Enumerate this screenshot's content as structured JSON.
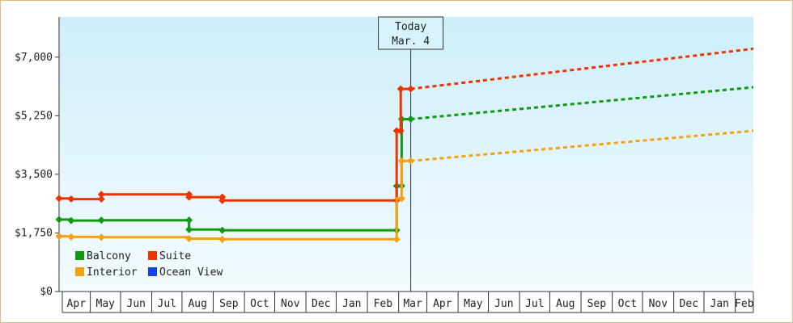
{
  "chart_data": {
    "type": "line",
    "title": "",
    "xlabel": "",
    "ylabel": "",
    "x_domain": [
      "2021-03-20",
      "2023-02-07"
    ],
    "ylim": [
      0,
      8200
    ],
    "y_ticks": [
      0,
      1750,
      3500,
      5250,
      7000
    ],
    "y_tick_labels": [
      "$0",
      "$1,750",
      "$3,500",
      "$5,250",
      "$7,000"
    ],
    "month_ticks": [
      {
        "date": "2021-03-20",
        "label": "Apr"
      },
      {
        "date": "2021-04-20",
        "label": "May"
      },
      {
        "date": "2021-05-20",
        "label": "Jun"
      },
      {
        "date": "2021-06-20",
        "label": "Jul"
      },
      {
        "date": "2021-07-20",
        "label": "Aug"
      },
      {
        "date": "2021-08-20",
        "label": "Sep"
      },
      {
        "date": "2021-09-20",
        "label": "Oct"
      },
      {
        "date": "2021-10-20",
        "label": "Nov"
      },
      {
        "date": "2021-11-20",
        "label": "Dec"
      },
      {
        "date": "2021-12-20",
        "label": "Jan"
      },
      {
        "date": "2022-01-20",
        "label": "Feb"
      },
      {
        "date": "2022-02-20",
        "label": "Mar"
      },
      {
        "date": "2022-03-20",
        "label": "Apr"
      },
      {
        "date": "2022-04-20",
        "label": "May"
      },
      {
        "date": "2022-05-20",
        "label": "Jun"
      },
      {
        "date": "2022-06-20",
        "label": "Jul"
      },
      {
        "date": "2022-07-20",
        "label": "Aug"
      },
      {
        "date": "2022-08-20",
        "label": "Sep"
      },
      {
        "date": "2022-09-20",
        "label": "Oct"
      },
      {
        "date": "2022-10-20",
        "label": "Nov"
      },
      {
        "date": "2022-11-20",
        "label": "Dec"
      },
      {
        "date": "2022-12-20",
        "label": "Jan"
      },
      {
        "date": "2023-01-20",
        "label": "Feb"
      }
    ],
    "today": {
      "date": "2022-03-04",
      "line1": "Today",
      "line2": "Mar. 4"
    },
    "series": [
      {
        "name": "Balcony",
        "color": "#119911",
        "points": [
          [
            "2021-03-20",
            2150
          ],
          [
            "2021-04-01",
            2150
          ],
          [
            "2021-04-01",
            2120
          ],
          [
            "2021-05-01",
            2120
          ],
          [
            "2021-05-01",
            2130
          ],
          [
            "2021-07-27",
            2130
          ],
          [
            "2021-07-27",
            1850
          ],
          [
            "2021-08-29",
            1850
          ],
          [
            "2021-08-29",
            1830
          ],
          [
            "2022-02-18",
            1830
          ],
          [
            "2022-02-18",
            3150
          ],
          [
            "2022-02-23",
            3150
          ],
          [
            "2022-02-23",
            5150
          ],
          [
            "2022-03-04",
            5150
          ]
        ],
        "markers": [
          [
            "2021-03-20",
            2150
          ],
          [
            "2021-04-01",
            2120
          ],
          [
            "2021-05-01",
            2130
          ],
          [
            "2021-07-27",
            2130
          ],
          [
            "2021-07-27",
            1850
          ],
          [
            "2021-08-29",
            1830
          ],
          [
            "2022-02-18",
            1830
          ],
          [
            "2022-02-18",
            3150
          ],
          [
            "2022-02-23",
            3150
          ],
          [
            "2022-02-23",
            5150
          ],
          [
            "2022-03-04",
            5150
          ]
        ],
        "forecast": [
          [
            "2022-03-04",
            5150
          ],
          [
            "2023-02-07",
            6100
          ]
        ]
      },
      {
        "name": "Suite",
        "color": "#ee3300",
        "points": [
          [
            "2021-03-20",
            2780
          ],
          [
            "2021-04-01",
            2780
          ],
          [
            "2021-04-01",
            2760
          ],
          [
            "2021-05-01",
            2760
          ],
          [
            "2021-05-01",
            2900
          ],
          [
            "2021-07-27",
            2900
          ],
          [
            "2021-07-27",
            2820
          ],
          [
            "2021-08-29",
            2820
          ],
          [
            "2021-08-29",
            2720
          ],
          [
            "2022-02-18",
            2720
          ],
          [
            "2022-02-18",
            4800
          ],
          [
            "2022-02-22",
            4800
          ],
          [
            "2022-02-22",
            6050
          ],
          [
            "2022-03-04",
            6050
          ]
        ],
        "markers": [
          [
            "2021-03-20",
            2780
          ],
          [
            "2021-04-01",
            2760
          ],
          [
            "2021-05-01",
            2760
          ],
          [
            "2021-05-01",
            2900
          ],
          [
            "2021-07-27",
            2900
          ],
          [
            "2021-07-27",
            2820
          ],
          [
            "2021-08-29",
            2820
          ],
          [
            "2021-08-29",
            2720
          ],
          [
            "2022-02-18",
            2720
          ],
          [
            "2022-02-18",
            4800
          ],
          [
            "2022-02-22",
            4800
          ],
          [
            "2022-02-22",
            6050
          ],
          [
            "2022-03-04",
            6050
          ]
        ],
        "forecast": [
          [
            "2022-03-04",
            6050
          ],
          [
            "2023-02-07",
            7250
          ]
        ]
      },
      {
        "name": "Interior",
        "color": "#f5a010",
        "points": [
          [
            "2021-03-20",
            1650
          ],
          [
            "2021-04-01",
            1650
          ],
          [
            "2021-04-01",
            1630
          ],
          [
            "2021-05-01",
            1630
          ],
          [
            "2021-05-01",
            1620
          ],
          [
            "2021-07-27",
            1620
          ],
          [
            "2021-07-27",
            1580
          ],
          [
            "2021-08-29",
            1580
          ],
          [
            "2021-08-29",
            1560
          ],
          [
            "2022-02-18",
            1560
          ],
          [
            "2022-02-18",
            2780
          ],
          [
            "2022-02-23",
            2780
          ],
          [
            "2022-02-23",
            3900
          ],
          [
            "2022-03-04",
            3900
          ]
        ],
        "markers": [
          [
            "2021-03-20",
            1650
          ],
          [
            "2021-04-01",
            1630
          ],
          [
            "2021-05-01",
            1620
          ],
          [
            "2021-07-27",
            1580
          ],
          [
            "2021-08-29",
            1560
          ],
          [
            "2022-02-18",
            1560
          ],
          [
            "2022-02-23",
            2780
          ],
          [
            "2022-02-23",
            3900
          ],
          [
            "2022-03-04",
            3900
          ]
        ],
        "forecast": [
          [
            "2022-03-04",
            3900
          ],
          [
            "2023-02-07",
            4800
          ]
        ]
      },
      {
        "name": "Ocean View",
        "color": "#1144ee",
        "points": [],
        "markers": [],
        "forecast": []
      }
    ],
    "legend_position": "bottom-left",
    "grid": false,
    "background_gradient": [
      "#cdeefa",
      "#f4fbfe"
    ]
  }
}
